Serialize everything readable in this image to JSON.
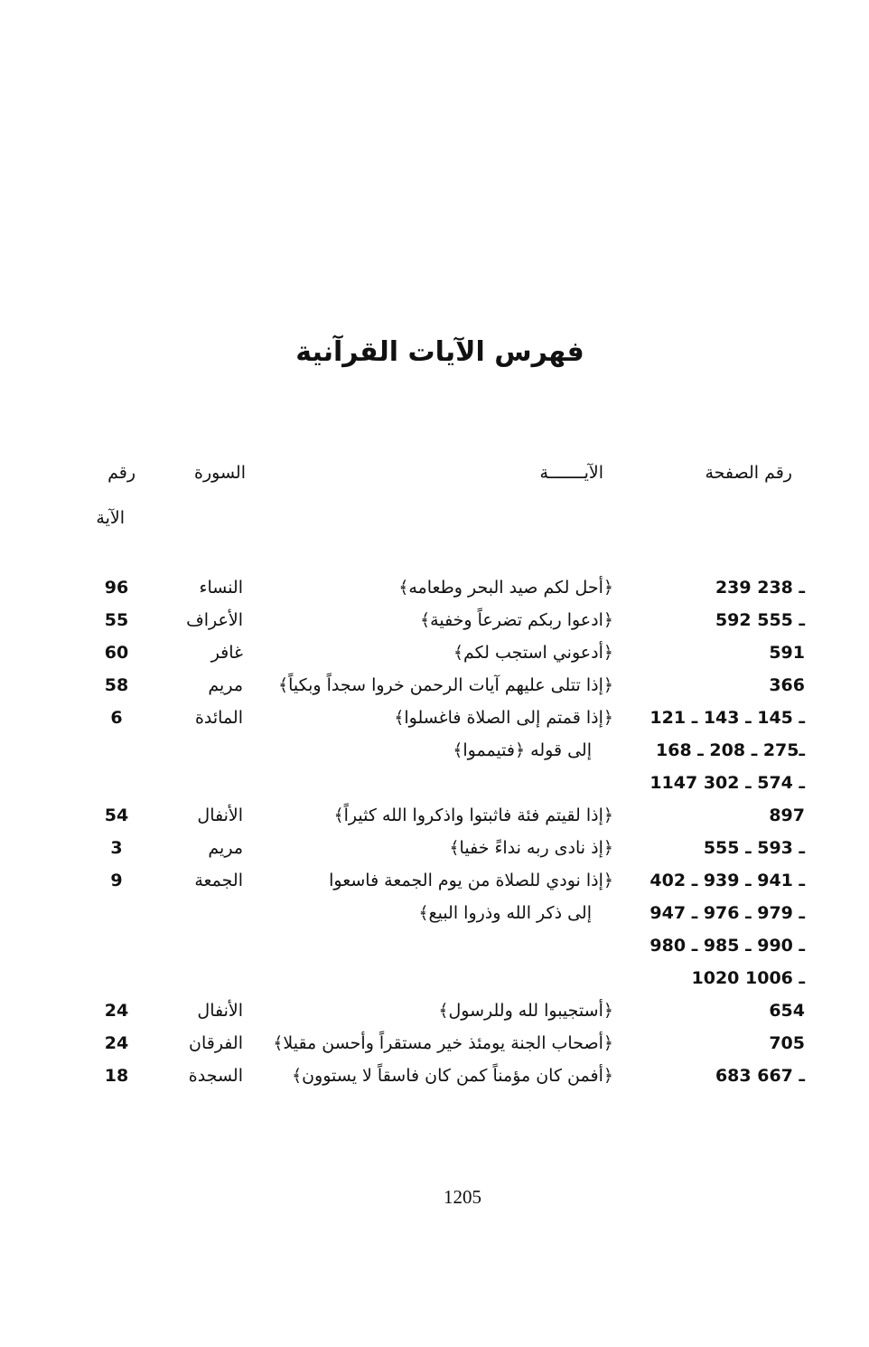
{
  "title": "فهرس الآيات القرآنية",
  "headers": {
    "page": "رقم الصفحة",
    "verse": "الآيـــــــة",
    "surah": "السورة",
    "ayah_line1": "رقم",
    "ayah_line2": "الآية"
  },
  "rows": [
    {
      "pages": "239 ـ 238",
      "verse": "﴿أحل لكم صيد البحر وطعامه﴾",
      "surah": "النساء",
      "ayah": "96"
    },
    {
      "pages": "592 ـ 555",
      "verse": "﴿ادعوا ربكم تضرعاً وخفية﴾",
      "surah": "الأعراف",
      "ayah": "55"
    },
    {
      "pages": "591",
      "verse": "﴿أدعوني استجب لكم﴾",
      "surah": "غافر",
      "ayah": "60"
    },
    {
      "pages": "366",
      "verse": "﴿إذا تتلى عليهم آيات الرحمن خروا سجداً وبكياً﴾",
      "surah": "مريم",
      "ayah": "58"
    },
    {
      "pages": "ـ 145 ـ 143 ـ 121",
      "verse": "﴿إذا قمتم إلى الصلاة فاغسلوا﴾",
      "surah": "المائدة",
      "ayah": "6"
    },
    {
      "pages": "ـ275 ـ 208 ـ 168",
      "verse": "إلى قوله ﴿فتيمموا﴾",
      "surah": "",
      "ayah": "",
      "cont": true
    },
    {
      "pages": "1147 ـ 574 ـ 302",
      "verse": "",
      "surah": "",
      "ayah": ""
    },
    {
      "pages": "897",
      "verse": "﴿إذا لقيتم فئة فاثبتوا واذكروا الله كثيراً﴾",
      "surah": "الأنفال",
      "ayah": "54"
    },
    {
      "pages": "ـ 593 ـ 555",
      "verse": "﴿إذ نادى ربه نداءً خفيا﴾",
      "surah": "مريم",
      "ayah": "3"
    },
    {
      "pages": "ـ 941 ـ 939 ـ 402",
      "verse": "﴿إذا نودي للصلاة من يوم الجمعة فاسعوا",
      "surah": "الجمعة",
      "ayah": "9"
    },
    {
      "pages": "ـ 979 ـ 976 ـ 947",
      "verse": "إلى ذكر الله وذروا البيع﴾",
      "surah": "",
      "ayah": "",
      "cont": true
    },
    {
      "pages": "ـ 990 ـ 985 ـ 980",
      "verse": "",
      "surah": "",
      "ayah": ""
    },
    {
      "pages": "1020 ـ 1006",
      "verse": "",
      "surah": "",
      "ayah": ""
    },
    {
      "pages": "654",
      "verse": "﴿أستجيبوا لله وللرسول﴾",
      "surah": "الأنفال",
      "ayah": "24"
    },
    {
      "pages": "705",
      "verse": "﴿أصحاب الجنة يومئذ خير مستقراً وأحسن مقيلا﴾",
      "surah": "الفرقان",
      "ayah": "24"
    },
    {
      "pages": "683 ـ 667",
      "verse": "﴿أفمن كان مؤمناً كمن كان فاسقاً لا يستوون﴾",
      "surah": "السجدة",
      "ayah": "18"
    }
  ],
  "page_number": "1205"
}
